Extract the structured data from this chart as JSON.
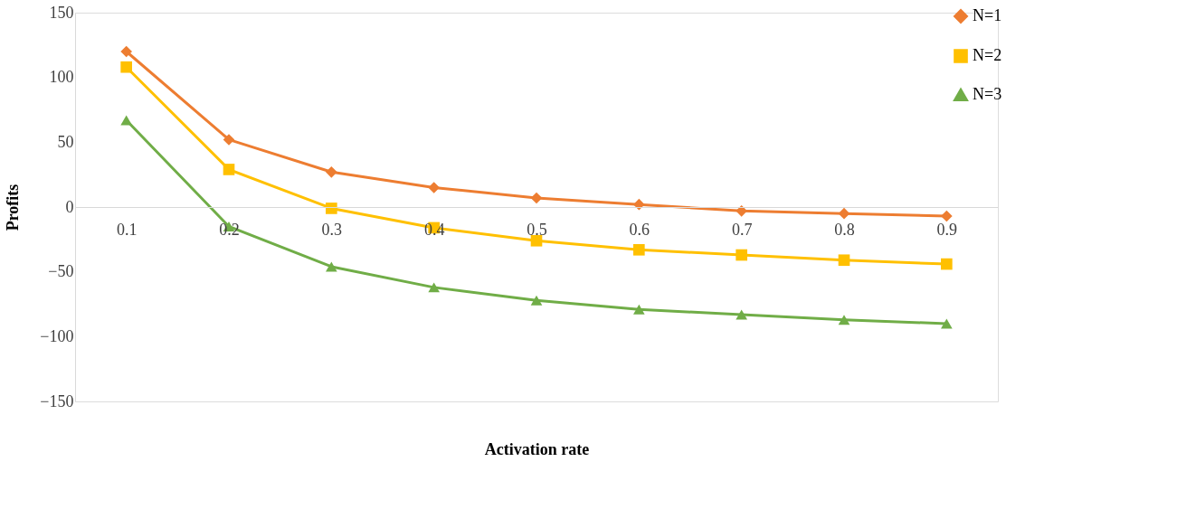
{
  "chart_data": {
    "type": "line",
    "xlabel": "Activation rate",
    "ylabel": "Profits",
    "categories": [
      "0.1",
      "0.2",
      "0.3",
      "0.4",
      "0.5",
      "0.6",
      "0.7",
      "0.8",
      "0.9"
    ],
    "series": [
      {
        "name": "N=1",
        "color": "#ed7d31",
        "marker": "diamond",
        "values": [
          120,
          52,
          27,
          15,
          7,
          2,
          -3,
          -5,
          -7
        ]
      },
      {
        "name": "N=2",
        "color": "#ffc000",
        "marker": "square",
        "values": [
          108,
          29,
          -1,
          -16,
          -26,
          -33,
          -37,
          -41,
          -44
        ]
      },
      {
        "name": "N=3",
        "color": "#70ad47",
        "marker": "triangle",
        "values": [
          67,
          -15,
          -46,
          -62,
          -72,
          -79,
          -83,
          -87,
          -90
        ]
      }
    ],
    "ylim": [
      -150,
      150
    ],
    "yticks": [
      -150,
      -100,
      -50,
      0,
      50,
      100,
      150
    ],
    "grid": false,
    "legend": "top right",
    "line_style": "solid"
  }
}
